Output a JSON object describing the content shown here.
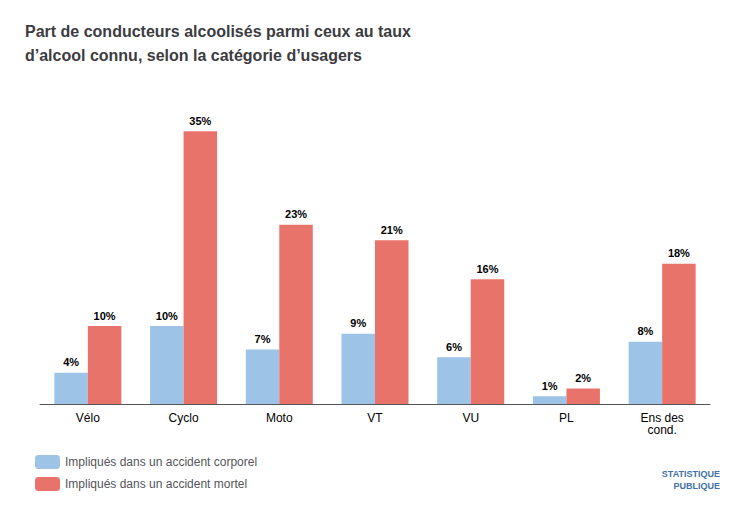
{
  "chart_data": {
    "type": "bar",
    "title": "Part de conducteurs alcoolisés parmi ceux au taux\nd’alcool connu, selon la catégorie d’usagers",
    "categories": [
      "Vélo",
      "Cyclo",
      "Moto",
      "VT",
      "VU",
      "PL",
      "Ens des\ncond."
    ],
    "series": [
      {
        "name": "Impliqués dans un accident corporel",
        "color": "#9DC3E6",
        "values": [
          4,
          10,
          7,
          9,
          6,
          1,
          8
        ],
        "value_labels": [
          "4%",
          "10%",
          "7%",
          "9%",
          "6%",
          "1%",
          "8%"
        ]
      },
      {
        "name": "Impliqués dans un accident mortel",
        "color": "#E8736A",
        "values": [
          10,
          35,
          23,
          21,
          16,
          2,
          18
        ],
        "value_labels": [
          "10%",
          "35%",
          "23%",
          "21%",
          "16%",
          "2%",
          "18%"
        ]
      }
    ],
    "ylim": [
      0,
      39
    ],
    "grid": false,
    "legend": "lower left",
    "data_labels": true,
    "tick_labels": "x",
    "annotations": [
      "STATISTIQUE",
      "PUBLIQUE"
    ]
  }
}
